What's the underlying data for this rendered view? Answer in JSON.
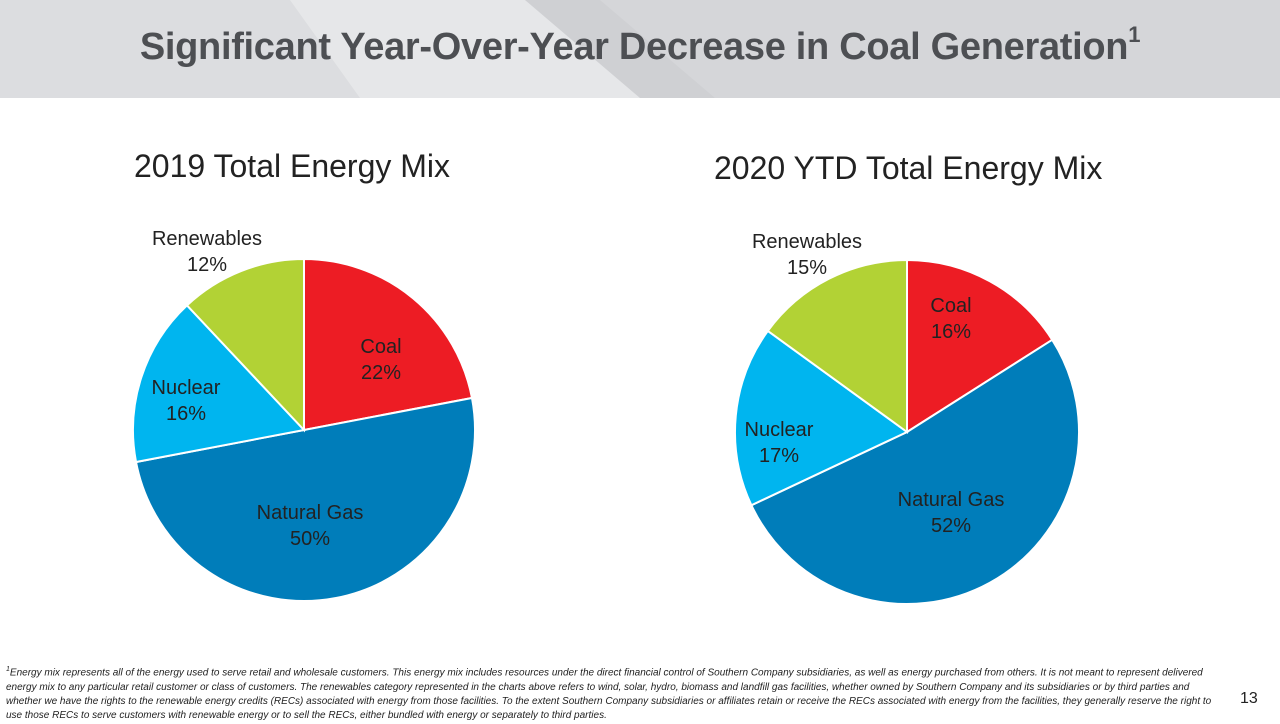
{
  "slide": {
    "title": "Significant Year-Over-Year Decrease in Coal Generation",
    "title_footnote_mark": "1",
    "footnote_mark": "1",
    "footnote": "Energy mix represents all of the energy used to serve retail and wholesale customers.  This energy mix includes resources under the direct financial control of Southern Company subsidiaries, as well as energy purchased from others.  It is not meant to represent delivered energy mix to any particular retail customer or class of customers.  The renewables category represented in the charts above refers to wind, solar, hydro, biomass and landfill gas facilities, whether owned by Southern Company and its subsidiaries or by third parties and whether we have the rights to the renewable energy credits (RECs) associated with energy from those facilities.  To the extent Southern Company subsidiaries or affiliates retain or receive the RECs associated with energy from the facilities, they generally reserve the right to use those RECs to serve customers with renewable energy or to sell the RECs, either bundled with energy or separately to third parties.",
    "page_number": "13"
  },
  "colors": {
    "Coal": "#ed1c24",
    "Natural Gas": "#007dba",
    "Nuclear": "#00b5ef",
    "Renewables": "#b2d235",
    "header_band": "#e6e7e9",
    "title_text": "#4d4f53"
  },
  "chart_data": [
    {
      "type": "pie",
      "title": "2019 Total Energy Mix",
      "slices": [
        {
          "label": "Coal",
          "value": 22,
          "value_label": "22%"
        },
        {
          "label": "Natural Gas",
          "value": 50,
          "value_label": "50%"
        },
        {
          "label": "Nuclear",
          "value": 16,
          "value_label": "16%"
        },
        {
          "label": "Renewables",
          "value": 12,
          "value_label": "12%"
        }
      ]
    },
    {
      "type": "pie",
      "title": "2020 YTD Total Energy Mix",
      "slices": [
        {
          "label": "Coal",
          "value": 16,
          "value_label": "16%"
        },
        {
          "label": "Natural Gas",
          "value": 52,
          "value_label": "52%"
        },
        {
          "label": "Nuclear",
          "value": 17,
          "value_label": "17%"
        },
        {
          "label": "Renewables",
          "value": 15,
          "value_label": "15%"
        }
      ]
    }
  ]
}
